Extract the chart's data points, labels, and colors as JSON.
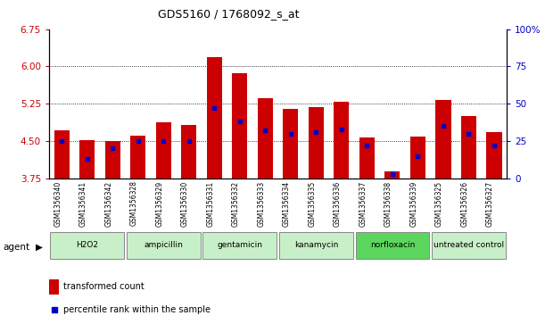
{
  "title": "GDS5160 / 1768092_s_at",
  "samples": [
    "GSM1356340",
    "GSM1356341",
    "GSM1356342",
    "GSM1356328",
    "GSM1356329",
    "GSM1356330",
    "GSM1356331",
    "GSM1356332",
    "GSM1356333",
    "GSM1356334",
    "GSM1356335",
    "GSM1356336",
    "GSM1356337",
    "GSM1356338",
    "GSM1356339",
    "GSM1356325",
    "GSM1356326",
    "GSM1356327"
  ],
  "bar_values": [
    4.72,
    4.52,
    4.5,
    4.6,
    4.88,
    4.83,
    6.18,
    5.87,
    5.36,
    5.15,
    5.18,
    5.28,
    4.57,
    3.88,
    4.58,
    5.32,
    5.0,
    4.68
  ],
  "dot_percentiles": [
    25,
    13,
    20,
    25,
    25,
    25,
    47,
    38,
    32,
    30,
    31,
    33,
    22,
    3,
    15,
    35,
    30,
    22
  ],
  "groups": [
    {
      "label": "H2O2",
      "start": 0,
      "end": 2,
      "color": "#c8f0c8"
    },
    {
      "label": "ampicillin",
      "start": 3,
      "end": 5,
      "color": "#c8f0c8"
    },
    {
      "label": "gentamicin",
      "start": 6,
      "end": 8,
      "color": "#c8f0c8"
    },
    {
      "label": "kanamycin",
      "start": 9,
      "end": 11,
      "color": "#c8f0c8"
    },
    {
      "label": "norfloxacin",
      "start": 12,
      "end": 14,
      "color": "#5cd65c"
    },
    {
      "label": "untreated control",
      "start": 15,
      "end": 17,
      "color": "#c8f0c8"
    }
  ],
  "bar_color": "#cc0000",
  "dot_color": "#0000cc",
  "ylim_left": [
    3.75,
    6.75
  ],
  "ylim_right": [
    0,
    100
  ],
  "yticks_left": [
    3.75,
    4.5,
    5.25,
    6.0,
    6.75
  ],
  "yticks_right": [
    0,
    25,
    50,
    75,
    100
  ],
  "grid_values": [
    4.5,
    5.25,
    6.0
  ],
  "legend_items": [
    {
      "label": "transformed count",
      "color": "#cc0000"
    },
    {
      "label": "percentile rank within the sample",
      "color": "#0000cc"
    }
  ],
  "agent_label": "agent",
  "title_color": "#000000",
  "left_axis_color": "#cc0000",
  "right_axis_color": "#0000cc"
}
